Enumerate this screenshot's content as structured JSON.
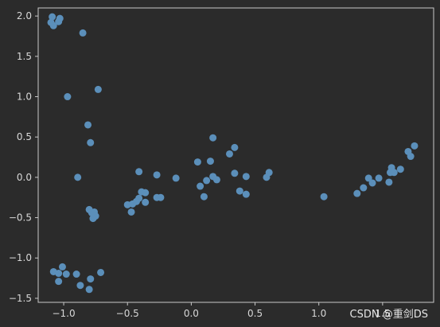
{
  "chart_data": {
    "type": "scatter",
    "title": "",
    "xlabel": "",
    "ylabel": "",
    "xlim": [
      -1.2,
      1.9
    ],
    "ylim": [
      -1.55,
      2.1
    ],
    "grid": false,
    "colors": {
      "background": "#2b2b2b",
      "axes": "#c8c8c8",
      "tick_text": "#d8d8d8",
      "points": "#5b8fba"
    },
    "xticks": [
      {
        "value": -1.0,
        "label": "−1.0"
      },
      {
        "value": -0.5,
        "label": "−0.5"
      },
      {
        "value": 0.0,
        "label": "0.0"
      },
      {
        "value": 0.5,
        "label": "0.5"
      },
      {
        "value": 1.0,
        "label": "1.0"
      },
      {
        "value": 1.5,
        "label": "1.5"
      }
    ],
    "yticks": [
      {
        "value": 2.0,
        "label": "2.0"
      },
      {
        "value": 1.5,
        "label": "1.5"
      },
      {
        "value": 1.0,
        "label": "1.0"
      },
      {
        "value": 0.5,
        "label": "0.5"
      },
      {
        "value": 0.0,
        "label": "0.0"
      },
      {
        "value": -0.5,
        "label": "−0.5"
      },
      {
        "value": -1.0,
        "label": "−1.0"
      },
      {
        "value": -1.5,
        "label": "−1.5"
      }
    ],
    "series": [
      {
        "points": [
          [
            -1.09,
            1.99
          ],
          [
            -1.1,
            1.92
          ],
          [
            -1.08,
            1.88
          ],
          [
            -1.03,
            1.97
          ],
          [
            -1.04,
            1.93
          ],
          [
            -0.85,
            1.79
          ],
          [
            -0.97,
            1.0
          ],
          [
            -0.73,
            1.09
          ],
          [
            -0.81,
            0.65
          ],
          [
            -0.79,
            0.43
          ],
          [
            -0.89,
            0.0
          ],
          [
            -0.8,
            -0.4
          ],
          [
            -0.78,
            -0.44
          ],
          [
            -0.76,
            -0.43
          ],
          [
            -0.75,
            -0.48
          ],
          [
            -0.77,
            -0.51
          ],
          [
            -1.08,
            -1.17
          ],
          [
            -1.04,
            -1.19
          ],
          [
            -1.01,
            -1.11
          ],
          [
            -0.98,
            -1.2
          ],
          [
            -0.9,
            -1.2
          ],
          [
            -0.79,
            -1.26
          ],
          [
            -0.71,
            -1.18
          ],
          [
            -1.04,
            -1.29
          ],
          [
            -0.87,
            -1.34
          ],
          [
            -0.8,
            -1.39
          ],
          [
            -0.5,
            -0.34
          ],
          [
            -0.46,
            -0.33
          ],
          [
            -0.47,
            -0.43
          ],
          [
            -0.43,
            -0.3
          ],
          [
            -0.41,
            -0.26
          ],
          [
            -0.39,
            -0.18
          ],
          [
            -0.36,
            -0.19
          ],
          [
            -0.36,
            -0.31
          ],
          [
            -0.27,
            0.03
          ],
          [
            -0.27,
            -0.25
          ],
          [
            -0.24,
            -0.25
          ],
          [
            -0.41,
            0.07
          ],
          [
            -0.12,
            -0.01
          ],
          [
            0.05,
            0.19
          ],
          [
            0.07,
            -0.11
          ],
          [
            0.1,
            -0.24
          ],
          [
            0.12,
            -0.04
          ],
          [
            0.15,
            0.2
          ],
          [
            0.17,
            0.49
          ],
          [
            0.17,
            0.01
          ],
          [
            0.2,
            -0.03
          ],
          [
            0.3,
            0.29
          ],
          [
            0.34,
            0.37
          ],
          [
            0.34,
            0.05
          ],
          [
            0.38,
            -0.17
          ],
          [
            0.43,
            -0.21
          ],
          [
            0.43,
            0.01
          ],
          [
            0.59,
            0.0
          ],
          [
            0.61,
            0.06
          ],
          [
            1.04,
            -0.24
          ],
          [
            1.3,
            -0.2
          ],
          [
            1.35,
            -0.13
          ],
          [
            1.39,
            -0.01
          ],
          [
            1.42,
            -0.07
          ],
          [
            1.47,
            -0.01
          ],
          [
            1.55,
            -0.06
          ],
          [
            1.56,
            0.06
          ],
          [
            1.57,
            0.12
          ],
          [
            1.59,
            0.06
          ],
          [
            1.64,
            0.1
          ],
          [
            1.7,
            0.32
          ],
          [
            1.72,
            0.26
          ],
          [
            1.75,
            0.39
          ]
        ]
      }
    ]
  },
  "watermark": "CSDN @重剑DS"
}
